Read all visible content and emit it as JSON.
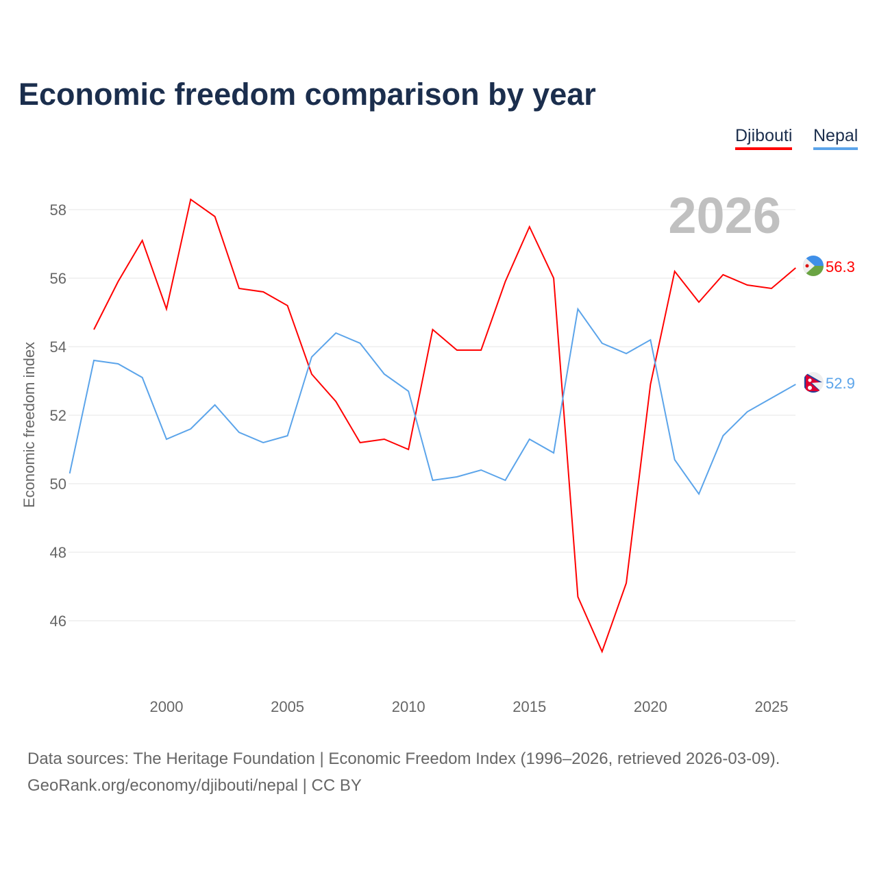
{
  "chart_data": {
    "type": "line",
    "title": "Economic freedom comparison by year",
    "ylabel": "Economic freedom index",
    "xlabel": "",
    "ylim": [
      44,
      59
    ],
    "xlim": [
      1996,
      2026
    ],
    "yticks": [
      46,
      48,
      50,
      52,
      54,
      56,
      58
    ],
    "xticks": [
      2000,
      2005,
      2010,
      2015,
      2020,
      2025
    ],
    "grid": true,
    "legend_position": "top-right",
    "year_label": "2026",
    "series": [
      {
        "name": "Djibouti",
        "color": "#ff0000",
        "end_label": "56.3",
        "x": [
          1997,
          1998,
          1999,
          2000,
          2001,
          2002,
          2003,
          2004,
          2005,
          2006,
          2007,
          2008,
          2009,
          2010,
          2011,
          2012,
          2013,
          2014,
          2015,
          2016,
          2017,
          2018,
          2019,
          2020,
          2021,
          2022,
          2023,
          2024,
          2025,
          2026
        ],
        "values": [
          54.5,
          55.9,
          57.1,
          55.1,
          58.3,
          57.8,
          55.7,
          55.6,
          55.2,
          53.2,
          52.4,
          51.2,
          51.3,
          51.0,
          54.5,
          53.9,
          53.9,
          55.9,
          57.5,
          56.0,
          46.7,
          45.1,
          47.1,
          52.9,
          56.2,
          55.3,
          56.1,
          55.8,
          55.7,
          56.3
        ]
      },
      {
        "name": "Nepal",
        "color": "#5ba4ea",
        "end_label": "52.9",
        "x": [
          1996,
          1997,
          1998,
          1999,
          2000,
          2001,
          2002,
          2003,
          2004,
          2005,
          2006,
          2007,
          2008,
          2009,
          2010,
          2011,
          2012,
          2013,
          2014,
          2015,
          2016,
          2017,
          2018,
          2019,
          2020,
          2021,
          2022,
          2023,
          2024,
          2025,
          2026
        ],
        "values": [
          50.3,
          53.6,
          53.5,
          53.1,
          51.3,
          51.6,
          52.3,
          51.5,
          51.2,
          51.4,
          53.7,
          54.4,
          54.1,
          53.2,
          52.7,
          50.1,
          50.2,
          50.4,
          50.1,
          51.3,
          50.9,
          55.1,
          54.1,
          53.8,
          54.2,
          50.7,
          49.7,
          51.4,
          52.1,
          52.5,
          52.9
        ]
      }
    ]
  },
  "source_line1": "Data sources: The Heritage Foundation | Economic Freedom Index (1996–2026, retrieved 2026-03-09).",
  "source_line2": "GeoRank.org/economy/djibouti/nepal | CC BY"
}
